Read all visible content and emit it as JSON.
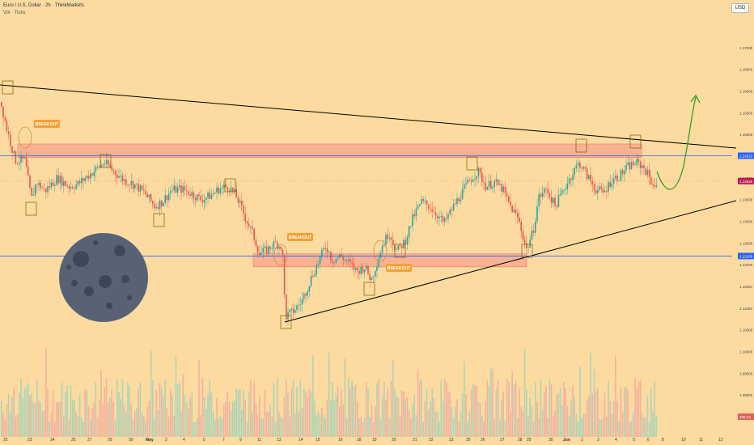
{
  "header": {
    "title": "Euro / U.S. Dollar · 2h · ThinkMarkets",
    "volume_label": "Vol · Ticks",
    "currency": "USD"
  },
  "colors": {
    "background": "#fddba0",
    "up_candle": "#26a69a",
    "down_candle": "#ef5350",
    "zone": "#f7a58d",
    "trendline": "#000000",
    "projection": "#2e9e2e",
    "breakout_label": "#f5a033",
    "blue_level": "#2962ff",
    "current_price": "#c2185b"
  },
  "chart_data": {
    "type": "candlestick",
    "symbol": "EURUSD",
    "ylim": [
      1.085,
      1.175
    ],
    "y_ticks": [
      "1.17000",
      "1.16500",
      "1.16000",
      "1.15500",
      "1.15000",
      "1.14500",
      "1.14000",
      "1.13500",
      "1.13000",
      "1.12500",
      "1.12000",
      "1.11500",
      "1.11000",
      "1.10500",
      "1.10000",
      "1.09500",
      "1.09000",
      "1.08500"
    ],
    "x_ticks": [
      "22",
      "23",
      "24",
      "25",
      "27",
      "29",
      "30",
      "May",
      "2",
      "4",
      "5",
      "7",
      "9",
      "11",
      "13",
      "14",
      "15",
      "16",
      "18",
      "19",
      "20",
      "21",
      "22",
      "23",
      "25",
      "26",
      "27",
      "28",
      "29",
      "30",
      "Jun",
      "2",
      "3",
      "4",
      "5",
      "6",
      "8",
      "10",
      "11",
      "12"
    ],
    "price_path": [
      [
        0,
        1.1575
      ],
      [
        8,
        1.151
      ],
      [
        18,
        1.144
      ],
      [
        30,
        1.144
      ],
      [
        38,
        1.135
      ],
      [
        44,
        1.139
      ],
      [
        55,
        1.137
      ],
      [
        70,
        1.14
      ],
      [
        85,
        1.138
      ],
      [
        95,
        1.1385
      ],
      [
        105,
        1.14
      ],
      [
        118,
        1.142
      ],
      [
        128,
        1.1435
      ],
      [
        140,
        1.1415
      ],
      [
        152,
        1.1395
      ],
      [
        165,
        1.1385
      ],
      [
        178,
        1.1365
      ],
      [
        190,
        1.1335
      ],
      [
        200,
        1.1345
      ],
      [
        210,
        1.137
      ],
      [
        222,
        1.1375
      ],
      [
        235,
        1.1365
      ],
      [
        248,
        1.135
      ],
      [
        260,
        1.136
      ],
      [
        270,
        1.1375
      ],
      [
        282,
        1.138
      ],
      [
        292,
        1.1355
      ],
      [
        302,
        1.131
      ],
      [
        312,
        1.127
      ],
      [
        320,
        1.1225
      ],
      [
        330,
        1.1235
      ],
      [
        340,
        1.125
      ],
      [
        348,
        1.124
      ],
      [
        352,
        1.108
      ],
      [
        360,
        1.109
      ],
      [
        372,
        1.1115
      ],
      [
        385,
        1.1175
      ],
      [
        395,
        1.1215
      ],
      [
        402,
        1.1245
      ],
      [
        410,
        1.121
      ],
      [
        420,
        1.122
      ],
      [
        430,
        1.1205
      ],
      [
        440,
        1.1185
      ],
      [
        450,
        1.1195
      ],
      [
        458,
        1.1165
      ],
      [
        465,
        1.1205
      ],
      [
        472,
        1.1245
      ],
      [
        480,
        1.1275
      ],
      [
        490,
        1.123
      ],
      [
        500,
        1.1255
      ],
      [
        510,
        1.131
      ],
      [
        520,
        1.1345
      ],
      [
        530,
        1.1335
      ],
      [
        540,
        1.1315
      ],
      [
        548,
        1.1295
      ],
      [
        560,
        1.1335
      ],
      [
        570,
        1.1365
      ],
      [
        580,
        1.1395
      ],
      [
        590,
        1.1415
      ],
      [
        600,
        1.138
      ],
      [
        610,
        1.139
      ],
      [
        620,
        1.1375
      ],
      [
        630,
        1.1335
      ],
      [
        640,
        1.1305
      ],
      [
        650,
        1.1235
      ],
      [
        658,
        1.1275
      ],
      [
        665,
        1.1355
      ],
      [
        675,
        1.1375
      ],
      [
        685,
        1.1335
      ],
      [
        695,
        1.137
      ],
      [
        705,
        1.1405
      ],
      [
        715,
        1.1435
      ],
      [
        725,
        1.1405
      ],
      [
        735,
        1.1375
      ],
      [
        745,
        1.1365
      ],
      [
        755,
        1.1395
      ],
      [
        765,
        1.1405
      ],
      [
        775,
        1.1425
      ],
      [
        785,
        1.1435
      ],
      [
        795,
        1.1425
      ],
      [
        805,
        1.139
      ],
      [
        812,
        1.1375
      ]
    ],
    "current_price": 1.13926,
    "levels": [
      {
        "value": 1.1451,
        "label": "1.14510",
        "color": "#2962ff"
      },
      {
        "value": 1.122,
        "label": "1.12200",
        "color": "#2962ff"
      }
    ],
    "zones": [
      {
        "from": 1.1447,
        "to": 1.1478
      },
      {
        "from": 1.1195,
        "to": 1.1225
      }
    ],
    "annotations": [
      "BREAKOUT",
      "BREAKOUT",
      "BREAKOUT"
    ],
    "volume_label": "385.24"
  }
}
